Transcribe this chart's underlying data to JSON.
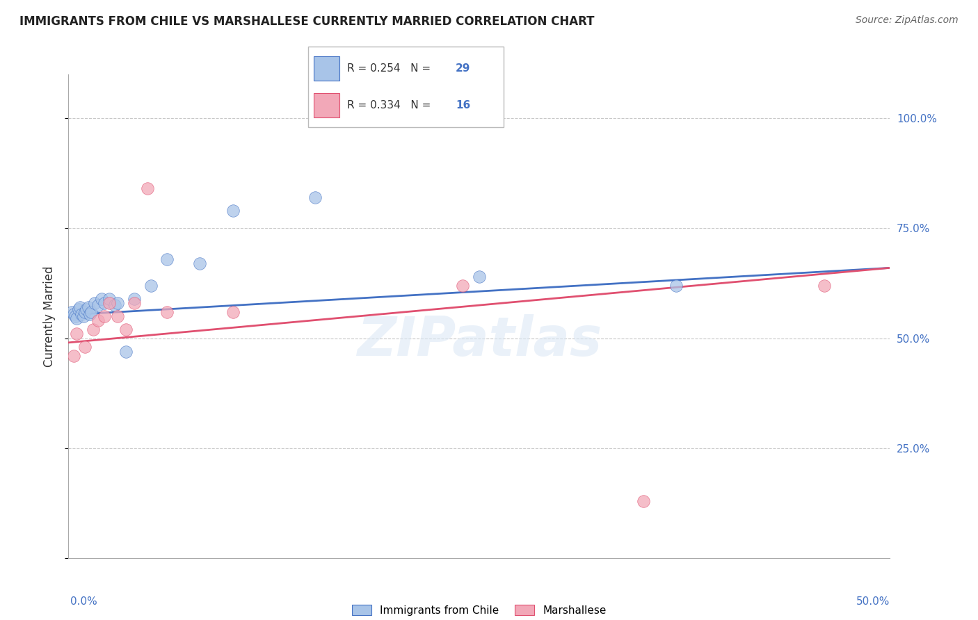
{
  "title": "IMMIGRANTS FROM CHILE VS MARSHALLESE CURRENTLY MARRIED CORRELATION CHART",
  "source": "Source: ZipAtlas.com",
  "ylabel": "Currently Married",
  "xlim": [
    0.0,
    0.5
  ],
  "ylim": [
    0.0,
    1.1
  ],
  "legend_r1": "R = 0.254",
  "legend_n1": "N = 29",
  "legend_r2": "R = 0.334",
  "legend_n2": "N = 16",
  "chile_color": "#a8c4e8",
  "marsh_color": "#f2a8b8",
  "trendline_chile_color": "#4472c4",
  "trendline_marsh_color": "#e05070",
  "watermark": "ZIPatlas",
  "chile_x": [
    0.002,
    0.003,
    0.004,
    0.005,
    0.006,
    0.007,
    0.008,
    0.009,
    0.01,
    0.011,
    0.012,
    0.013,
    0.014,
    0.016,
    0.018,
    0.02,
    0.022,
    0.025,
    0.028,
    0.03,
    0.035,
    0.04,
    0.05,
    0.06,
    0.08,
    0.1,
    0.15,
    0.25,
    0.37
  ],
  "chile_y": [
    0.56,
    0.555,
    0.55,
    0.545,
    0.565,
    0.57,
    0.555,
    0.55,
    0.56,
    0.565,
    0.57,
    0.555,
    0.56,
    0.58,
    0.575,
    0.59,
    0.58,
    0.59,
    0.575,
    0.58,
    0.47,
    0.59,
    0.62,
    0.68,
    0.67,
    0.79,
    0.82,
    0.64,
    0.62
  ],
  "marsh_x": [
    0.003,
    0.005,
    0.01,
    0.015,
    0.018,
    0.022,
    0.025,
    0.03,
    0.035,
    0.04,
    0.048,
    0.06,
    0.1,
    0.24,
    0.35,
    0.46
  ],
  "marsh_y": [
    0.46,
    0.51,
    0.48,
    0.52,
    0.54,
    0.55,
    0.58,
    0.55,
    0.52,
    0.58,
    0.84,
    0.56,
    0.56,
    0.62,
    0.13,
    0.62
  ],
  "chile_trendline_x": [
    0.0,
    0.5
  ],
  "chile_trendline_y": [
    0.553,
    0.66
  ],
  "marsh_trendline_x": [
    0.0,
    0.5
  ],
  "marsh_trendline_y": [
    0.49,
    0.66
  ]
}
